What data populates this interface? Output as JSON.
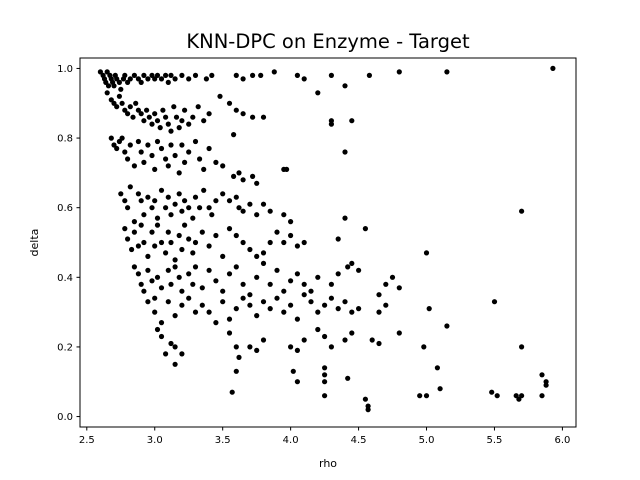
{
  "chart_data": {
    "type": "scatter",
    "title": "KNN-DPC on Enzyme - Target",
    "xlabel": "rho",
    "ylabel": "delta",
    "xlim": [
      2.45,
      6.1
    ],
    "ylim": [
      -0.03,
      1.03
    ],
    "xticks": [
      2.5,
      3.0,
      3.5,
      4.0,
      4.5,
      5.0,
      5.5,
      6.0
    ],
    "xtick_labels": [
      "2.5",
      "3.0",
      "3.5",
      "4.0",
      "4.5",
      "5.0",
      "5.5",
      "6.0"
    ],
    "yticks": [
      0.0,
      0.2,
      0.4,
      0.6,
      0.8,
      1.0
    ],
    "ytick_labels": [
      "0.0",
      "0.2",
      "0.4",
      "0.6",
      "0.8",
      "1.0"
    ],
    "grid": false,
    "marker_color": "#000000",
    "points": [
      [
        2.6,
        0.99
      ],
      [
        2.62,
        0.98
      ],
      [
        2.63,
        0.97
      ],
      [
        2.64,
        0.96
      ],
      [
        2.65,
        0.99
      ],
      [
        2.66,
        0.95
      ],
      [
        2.67,
        0.98
      ],
      [
        2.68,
        0.97
      ],
      [
        2.69,
        0.96
      ],
      [
        2.7,
        0.95
      ],
      [
        2.71,
        0.98
      ],
      [
        2.72,
        0.97
      ],
      [
        2.74,
        0.96
      ],
      [
        2.75,
        0.94
      ],
      [
        2.77,
        0.97
      ],
      [
        2.78,
        0.98
      ],
      [
        2.8,
        0.96
      ],
      [
        2.82,
        0.97
      ],
      [
        2.85,
        0.98
      ],
      [
        2.88,
        0.97
      ],
      [
        2.9,
        0.96
      ],
      [
        2.92,
        0.98
      ],
      [
        2.95,
        0.97
      ],
      [
        2.98,
        0.98
      ],
      [
        3.0,
        0.97
      ],
      [
        3.02,
        0.98
      ],
      [
        3.05,
        0.97
      ],
      [
        3.08,
        0.98
      ],
      [
        3.1,
        0.96
      ],
      [
        3.12,
        0.98
      ],
      [
        3.15,
        0.97
      ],
      [
        3.2,
        0.98
      ],
      [
        3.25,
        0.97
      ],
      [
        3.3,
        0.98
      ],
      [
        3.38,
        0.97
      ],
      [
        3.42,
        0.98
      ],
      [
        3.6,
        0.98
      ],
      [
        3.65,
        0.97
      ],
      [
        3.72,
        0.98
      ],
      [
        3.78,
        0.98
      ],
      [
        3.88,
        0.99
      ],
      [
        4.05,
        0.98
      ],
      [
        4.1,
        0.97
      ],
      [
        4.3,
        0.98
      ],
      [
        4.4,
        0.95
      ],
      [
        4.58,
        0.98
      ],
      [
        4.8,
        0.99
      ],
      [
        5.15,
        0.99
      ],
      [
        5.93,
        1.0
      ],
      [
        2.65,
        0.93
      ],
      [
        2.68,
        0.91
      ],
      [
        2.7,
        0.9
      ],
      [
        2.72,
        0.89
      ],
      [
        2.74,
        0.92
      ],
      [
        2.76,
        0.9
      ],
      [
        2.78,
        0.88
      ],
      [
        2.8,
        0.87
      ],
      [
        2.82,
        0.89
      ],
      [
        2.84,
        0.86
      ],
      [
        2.86,
        0.9
      ],
      [
        2.88,
        0.88
      ],
      [
        2.9,
        0.87
      ],
      [
        2.92,
        0.85
      ],
      [
        2.94,
        0.88
      ],
      [
        2.96,
        0.86
      ],
      [
        2.98,
        0.84
      ],
      [
        3.0,
        0.87
      ],
      [
        3.02,
        0.85
      ],
      [
        3.04,
        0.83
      ],
      [
        3.06,
        0.88
      ],
      [
        3.08,
        0.86
      ],
      [
        3.1,
        0.84
      ],
      [
        3.12,
        0.82
      ],
      [
        3.14,
        0.89
      ],
      [
        3.16,
        0.86
      ],
      [
        3.18,
        0.83
      ],
      [
        3.2,
        0.85
      ],
      [
        3.22,
        0.88
      ],
      [
        3.25,
        0.84
      ],
      [
        3.28,
        0.86
      ],
      [
        3.32,
        0.89
      ],
      [
        3.36,
        0.85
      ],
      [
        3.4,
        0.87
      ],
      [
        3.48,
        0.92
      ],
      [
        3.55,
        0.9
      ],
      [
        3.6,
        0.88
      ],
      [
        3.65,
        0.87
      ],
      [
        3.72,
        0.86
      ],
      [
        3.8,
        0.86
      ],
      [
        4.2,
        0.93
      ],
      [
        4.3,
        0.85
      ],
      [
        4.3,
        0.84
      ],
      [
        4.45,
        0.85
      ],
      [
        3.58,
        0.81
      ],
      [
        2.68,
        0.8
      ],
      [
        2.7,
        0.78
      ],
      [
        2.72,
        0.77
      ],
      [
        2.74,
        0.79
      ],
      [
        2.76,
        0.8
      ],
      [
        2.78,
        0.76
      ],
      [
        2.8,
        0.74
      ],
      [
        2.82,
        0.78
      ],
      [
        2.85,
        0.72
      ],
      [
        2.88,
        0.79
      ],
      [
        2.9,
        0.76
      ],
      [
        2.92,
        0.73
      ],
      [
        2.95,
        0.78
      ],
      [
        2.98,
        0.75
      ],
      [
        3.0,
        0.71
      ],
      [
        3.02,
        0.79
      ],
      [
        3.05,
        0.77
      ],
      [
        3.08,
        0.74
      ],
      [
        3.1,
        0.72
      ],
      [
        3.12,
        0.78
      ],
      [
        3.15,
        0.75
      ],
      [
        3.18,
        0.7
      ],
      [
        3.2,
        0.78
      ],
      [
        3.22,
        0.73
      ],
      [
        3.25,
        0.76
      ],
      [
        3.3,
        0.79
      ],
      [
        3.33,
        0.74
      ],
      [
        3.36,
        0.71
      ],
      [
        3.4,
        0.77
      ],
      [
        3.45,
        0.73
      ],
      [
        3.5,
        0.72
      ],
      [
        3.58,
        0.69
      ],
      [
        3.62,
        0.7
      ],
      [
        3.65,
        0.68
      ],
      [
        3.72,
        0.69
      ],
      [
        3.75,
        0.67
      ],
      [
        3.95,
        0.71
      ],
      [
        3.97,
        0.71
      ],
      [
        4.4,
        0.76
      ],
      [
        2.75,
        0.64
      ],
      [
        2.78,
        0.62
      ],
      [
        2.8,
        0.6
      ],
      [
        2.82,
        0.66
      ],
      [
        2.85,
        0.56
      ],
      [
        2.88,
        0.64
      ],
      [
        2.9,
        0.62
      ],
      [
        2.92,
        0.58
      ],
      [
        2.95,
        0.63
      ],
      [
        2.98,
        0.6
      ],
      [
        3.0,
        0.62
      ],
      [
        3.02,
        0.57
      ],
      [
        3.05,
        0.65
      ],
      [
        3.08,
        0.6
      ],
      [
        3.1,
        0.63
      ],
      [
        3.12,
        0.58
      ],
      [
        3.15,
        0.61
      ],
      [
        3.18,
        0.64
      ],
      [
        3.2,
        0.59
      ],
      [
        3.22,
        0.62
      ],
      [
        3.25,
        0.6
      ],
      [
        3.28,
        0.57
      ],
      [
        3.3,
        0.63
      ],
      [
        3.33,
        0.6
      ],
      [
        3.36,
        0.65
      ],
      [
        3.4,
        0.6
      ],
      [
        3.42,
        0.58
      ],
      [
        3.45,
        0.62
      ],
      [
        3.5,
        0.64
      ],
      [
        3.55,
        0.62
      ],
      [
        3.6,
        0.63
      ],
      [
        3.62,
        0.6
      ],
      [
        3.65,
        0.59
      ],
      [
        3.7,
        0.61
      ],
      [
        3.75,
        0.58
      ],
      [
        3.8,
        0.61
      ],
      [
        3.85,
        0.59
      ],
      [
        3.95,
        0.58
      ],
      [
        4.0,
        0.56
      ],
      [
        4.4,
        0.57
      ],
      [
        5.7,
        0.59
      ],
      [
        2.78,
        0.54
      ],
      [
        2.8,
        0.51
      ],
      [
        2.83,
        0.48
      ],
      [
        2.85,
        0.53
      ],
      [
        2.88,
        0.49
      ],
      [
        2.9,
        0.55
      ],
      [
        2.92,
        0.5
      ],
      [
        2.95,
        0.46
      ],
      [
        2.98,
        0.53
      ],
      [
        3.0,
        0.49
      ],
      [
        3.02,
        0.55
      ],
      [
        3.05,
        0.5
      ],
      [
        3.08,
        0.47
      ],
      [
        3.1,
        0.53
      ],
      [
        3.12,
        0.5
      ],
      [
        3.15,
        0.45
      ],
      [
        3.18,
        0.52
      ],
      [
        3.2,
        0.48
      ],
      [
        3.22,
        0.55
      ],
      [
        3.25,
        0.51
      ],
      [
        3.28,
        0.47
      ],
      [
        3.3,
        0.5
      ],
      [
        3.35,
        0.53
      ],
      [
        3.4,
        0.49
      ],
      [
        3.45,
        0.52
      ],
      [
        3.5,
        0.46
      ],
      [
        3.55,
        0.54
      ],
      [
        3.6,
        0.52
      ],
      [
        3.65,
        0.5
      ],
      [
        3.7,
        0.48
      ],
      [
        3.75,
        0.46
      ],
      [
        3.8,
        0.47
      ],
      [
        3.85,
        0.5
      ],
      [
        3.9,
        0.53
      ],
      [
        3.95,
        0.5
      ],
      [
        4.0,
        0.52
      ],
      [
        4.05,
        0.49
      ],
      [
        4.1,
        0.5
      ],
      [
        4.35,
        0.51
      ],
      [
        4.55,
        0.54
      ],
      [
        2.85,
        0.43
      ],
      [
        2.88,
        0.41
      ],
      [
        2.9,
        0.38
      ],
      [
        2.92,
        0.36
      ],
      [
        2.95,
        0.42
      ],
      [
        2.98,
        0.39
      ],
      [
        3.0,
        0.34
      ],
      [
        3.02,
        0.4
      ],
      [
        3.05,
        0.37
      ],
      [
        3.1,
        0.42
      ],
      [
        3.12,
        0.38
      ],
      [
        3.15,
        0.43
      ],
      [
        3.18,
        0.4
      ],
      [
        3.2,
        0.36
      ],
      [
        3.25,
        0.41
      ],
      [
        3.28,
        0.38
      ],
      [
        3.3,
        0.43
      ],
      [
        3.35,
        0.37
      ],
      [
        3.4,
        0.42
      ],
      [
        3.45,
        0.39
      ],
      [
        3.5,
        0.36
      ],
      [
        3.55,
        0.41
      ],
      [
        3.6,
        0.43
      ],
      [
        3.65,
        0.38
      ],
      [
        3.7,
        0.35
      ],
      [
        3.75,
        0.4
      ],
      [
        3.8,
        0.44
      ],
      [
        3.85,
        0.38
      ],
      [
        3.9,
        0.42
      ],
      [
        3.95,
        0.36
      ],
      [
        4.0,
        0.39
      ],
      [
        4.05,
        0.41
      ],
      [
        4.1,
        0.38
      ],
      [
        4.15,
        0.36
      ],
      [
        4.2,
        0.4
      ],
      [
        4.3,
        0.38
      ],
      [
        4.35,
        0.41
      ],
      [
        4.42,
        0.43
      ],
      [
        4.45,
        0.44
      ],
      [
        4.5,
        0.42
      ],
      [
        4.65,
        0.35
      ],
      [
        4.7,
        0.38
      ],
      [
        4.75,
        0.4
      ],
      [
        4.8,
        0.37
      ],
      [
        5.0,
        0.47
      ],
      [
        2.95,
        0.33
      ],
      [
        3.0,
        0.3
      ],
      [
        3.02,
        0.25
      ],
      [
        3.05,
        0.27
      ],
      [
        3.1,
        0.33
      ],
      [
        3.15,
        0.29
      ],
      [
        3.2,
        0.32
      ],
      [
        3.25,
        0.34
      ],
      [
        3.3,
        0.3
      ],
      [
        3.35,
        0.32
      ],
      [
        3.4,
        0.3
      ],
      [
        3.45,
        0.27
      ],
      [
        3.5,
        0.33
      ],
      [
        3.55,
        0.28
      ],
      [
        3.6,
        0.31
      ],
      [
        3.65,
        0.34
      ],
      [
        3.7,
        0.32
      ],
      [
        3.75,
        0.29
      ],
      [
        3.8,
        0.33
      ],
      [
        3.85,
        0.31
      ],
      [
        3.9,
        0.34
      ],
      [
        3.95,
        0.3
      ],
      [
        4.0,
        0.32
      ],
      [
        4.05,
        0.28
      ],
      [
        4.1,
        0.35
      ],
      [
        4.15,
        0.33
      ],
      [
        4.2,
        0.3
      ],
      [
        4.25,
        0.32
      ],
      [
        4.3,
        0.34
      ],
      [
        4.35,
        0.31
      ],
      [
        4.4,
        0.33
      ],
      [
        4.45,
        0.3
      ],
      [
        4.5,
        0.31
      ],
      [
        4.65,
        0.3
      ],
      [
        4.7,
        0.32
      ],
      [
        4.8,
        0.24
      ],
      [
        5.02,
        0.31
      ],
      [
        5.15,
        0.26
      ],
      [
        5.5,
        0.33
      ],
      [
        3.05,
        0.23
      ],
      [
        3.08,
        0.18
      ],
      [
        3.12,
        0.21
      ],
      [
        3.15,
        0.2
      ],
      [
        3.2,
        0.18
      ],
      [
        3.55,
        0.24
      ],
      [
        3.6,
        0.2
      ],
      [
        3.62,
        0.17
      ],
      [
        3.7,
        0.2
      ],
      [
        3.75,
        0.19
      ],
      [
        3.8,
        0.22
      ],
      [
        4.0,
        0.2
      ],
      [
        4.05,
        0.19
      ],
      [
        4.1,
        0.22
      ],
      [
        4.2,
        0.25
      ],
      [
        4.25,
        0.23
      ],
      [
        4.3,
        0.2
      ],
      [
        4.4,
        0.22
      ],
      [
        4.45,
        0.24
      ],
      [
        4.6,
        0.22
      ],
      [
        4.65,
        0.21
      ],
      [
        4.98,
        0.2
      ],
      [
        5.7,
        0.2
      ],
      [
        3.15,
        0.15
      ],
      [
        3.6,
        0.13
      ],
      [
        3.57,
        0.07
      ],
      [
        4.02,
        0.13
      ],
      [
        4.05,
        0.1
      ],
      [
        4.25,
        0.14
      ],
      [
        4.25,
        0.12
      ],
      [
        4.25,
        0.1
      ],
      [
        4.25,
        0.06
      ],
      [
        4.42,
        0.11
      ],
      [
        4.55,
        0.05
      ],
      [
        4.57,
        0.03
      ],
      [
        4.57,
        0.02
      ],
      [
        4.95,
        0.06
      ],
      [
        5.0,
        0.06
      ],
      [
        5.08,
        0.14
      ],
      [
        5.1,
        0.08
      ],
      [
        5.48,
        0.07
      ],
      [
        5.52,
        0.06
      ],
      [
        5.66,
        0.06
      ],
      [
        5.68,
        0.05
      ],
      [
        5.7,
        0.06
      ],
      [
        5.85,
        0.12
      ],
      [
        5.88,
        0.1
      ],
      [
        5.88,
        0.09
      ],
      [
        5.85,
        0.06
      ]
    ]
  }
}
